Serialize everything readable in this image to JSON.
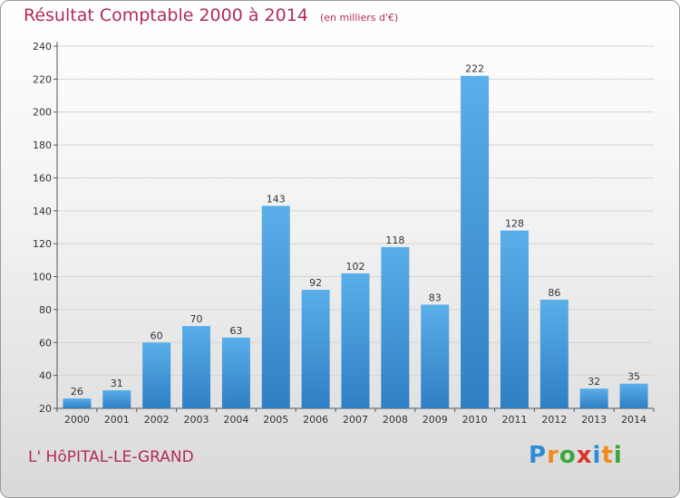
{
  "header": {
    "title": "Résultat Comptable 2000 à 2014",
    "subtitle": "(en milliers d'€)"
  },
  "footer": {
    "commune": "L' HôPITAL-LE-GRAND",
    "logo": {
      "letters": [
        "P",
        "r",
        "o",
        "x",
        "i",
        "t",
        "i"
      ],
      "colors": [
        "#2e8bd6",
        "#f08a1c",
        "#3aa83a",
        "#d8342c",
        "#2e8bd6",
        "#f08a1c",
        "#3aa83a"
      ]
    }
  },
  "chart_data": {
    "type": "bar",
    "categories": [
      "2000",
      "2001",
      "2002",
      "2003",
      "2004",
      "2005",
      "2006",
      "2007",
      "2008",
      "2009",
      "2010",
      "2011",
      "2012",
      "2013",
      "2014"
    ],
    "values": [
      26,
      31,
      60,
      70,
      63,
      143,
      92,
      102,
      118,
      83,
      222,
      128,
      86,
      32,
      35
    ],
    "ylim": [
      20,
      240
    ],
    "yticks": [
      20,
      40,
      60,
      80,
      100,
      120,
      140,
      160,
      180,
      200,
      220,
      240
    ],
    "grid": true,
    "bar_color": "#4a9fe0"
  }
}
